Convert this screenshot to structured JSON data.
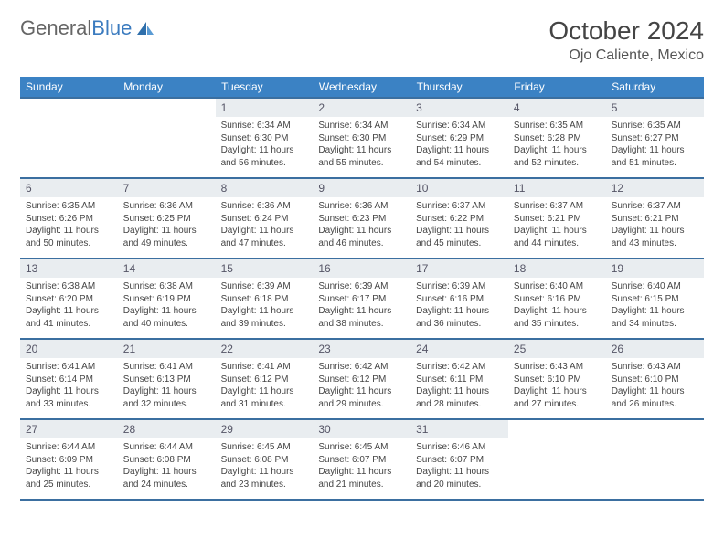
{
  "brand": {
    "part1": "General",
    "part2": "Blue"
  },
  "title": "October 2024",
  "location": "Ojo Caliente, Mexico",
  "colors": {
    "header_bg": "#3b82c4",
    "rule": "#3b6fa0",
    "daynum_bg": "#e9edf0",
    "text": "#444444"
  },
  "weekdays": [
    "Sunday",
    "Monday",
    "Tuesday",
    "Wednesday",
    "Thursday",
    "Friday",
    "Saturday"
  ],
  "leading_blanks": 2,
  "days": [
    {
      "n": 1,
      "sunrise": "6:34 AM",
      "sunset": "6:30 PM",
      "daylight": "11 hours and 56 minutes."
    },
    {
      "n": 2,
      "sunrise": "6:34 AM",
      "sunset": "6:30 PM",
      "daylight": "11 hours and 55 minutes."
    },
    {
      "n": 3,
      "sunrise": "6:34 AM",
      "sunset": "6:29 PM",
      "daylight": "11 hours and 54 minutes."
    },
    {
      "n": 4,
      "sunrise": "6:35 AM",
      "sunset": "6:28 PM",
      "daylight": "11 hours and 52 minutes."
    },
    {
      "n": 5,
      "sunrise": "6:35 AM",
      "sunset": "6:27 PM",
      "daylight": "11 hours and 51 minutes."
    },
    {
      "n": 6,
      "sunrise": "6:35 AM",
      "sunset": "6:26 PM",
      "daylight": "11 hours and 50 minutes."
    },
    {
      "n": 7,
      "sunrise": "6:36 AM",
      "sunset": "6:25 PM",
      "daylight": "11 hours and 49 minutes."
    },
    {
      "n": 8,
      "sunrise": "6:36 AM",
      "sunset": "6:24 PM",
      "daylight": "11 hours and 47 minutes."
    },
    {
      "n": 9,
      "sunrise": "6:36 AM",
      "sunset": "6:23 PM",
      "daylight": "11 hours and 46 minutes."
    },
    {
      "n": 10,
      "sunrise": "6:37 AM",
      "sunset": "6:22 PM",
      "daylight": "11 hours and 45 minutes."
    },
    {
      "n": 11,
      "sunrise": "6:37 AM",
      "sunset": "6:21 PM",
      "daylight": "11 hours and 44 minutes."
    },
    {
      "n": 12,
      "sunrise": "6:37 AM",
      "sunset": "6:21 PM",
      "daylight": "11 hours and 43 minutes."
    },
    {
      "n": 13,
      "sunrise": "6:38 AM",
      "sunset": "6:20 PM",
      "daylight": "11 hours and 41 minutes."
    },
    {
      "n": 14,
      "sunrise": "6:38 AM",
      "sunset": "6:19 PM",
      "daylight": "11 hours and 40 minutes."
    },
    {
      "n": 15,
      "sunrise": "6:39 AM",
      "sunset": "6:18 PM",
      "daylight": "11 hours and 39 minutes."
    },
    {
      "n": 16,
      "sunrise": "6:39 AM",
      "sunset": "6:17 PM",
      "daylight": "11 hours and 38 minutes."
    },
    {
      "n": 17,
      "sunrise": "6:39 AM",
      "sunset": "6:16 PM",
      "daylight": "11 hours and 36 minutes."
    },
    {
      "n": 18,
      "sunrise": "6:40 AM",
      "sunset": "6:16 PM",
      "daylight": "11 hours and 35 minutes."
    },
    {
      "n": 19,
      "sunrise": "6:40 AM",
      "sunset": "6:15 PM",
      "daylight": "11 hours and 34 minutes."
    },
    {
      "n": 20,
      "sunrise": "6:41 AM",
      "sunset": "6:14 PM",
      "daylight": "11 hours and 33 minutes."
    },
    {
      "n": 21,
      "sunrise": "6:41 AM",
      "sunset": "6:13 PM",
      "daylight": "11 hours and 32 minutes."
    },
    {
      "n": 22,
      "sunrise": "6:41 AM",
      "sunset": "6:12 PM",
      "daylight": "11 hours and 31 minutes."
    },
    {
      "n": 23,
      "sunrise": "6:42 AM",
      "sunset": "6:12 PM",
      "daylight": "11 hours and 29 minutes."
    },
    {
      "n": 24,
      "sunrise": "6:42 AM",
      "sunset": "6:11 PM",
      "daylight": "11 hours and 28 minutes."
    },
    {
      "n": 25,
      "sunrise": "6:43 AM",
      "sunset": "6:10 PM",
      "daylight": "11 hours and 27 minutes."
    },
    {
      "n": 26,
      "sunrise": "6:43 AM",
      "sunset": "6:10 PM",
      "daylight": "11 hours and 26 minutes."
    },
    {
      "n": 27,
      "sunrise": "6:44 AM",
      "sunset": "6:09 PM",
      "daylight": "11 hours and 25 minutes."
    },
    {
      "n": 28,
      "sunrise": "6:44 AM",
      "sunset": "6:08 PM",
      "daylight": "11 hours and 24 minutes."
    },
    {
      "n": 29,
      "sunrise": "6:45 AM",
      "sunset": "6:08 PM",
      "daylight": "11 hours and 23 minutes."
    },
    {
      "n": 30,
      "sunrise": "6:45 AM",
      "sunset": "6:07 PM",
      "daylight": "11 hours and 21 minutes."
    },
    {
      "n": 31,
      "sunrise": "6:46 AM",
      "sunset": "6:07 PM",
      "daylight": "11 hours and 20 minutes."
    }
  ],
  "labels": {
    "sunrise": "Sunrise:",
    "sunset": "Sunset:",
    "daylight": "Daylight:"
  }
}
